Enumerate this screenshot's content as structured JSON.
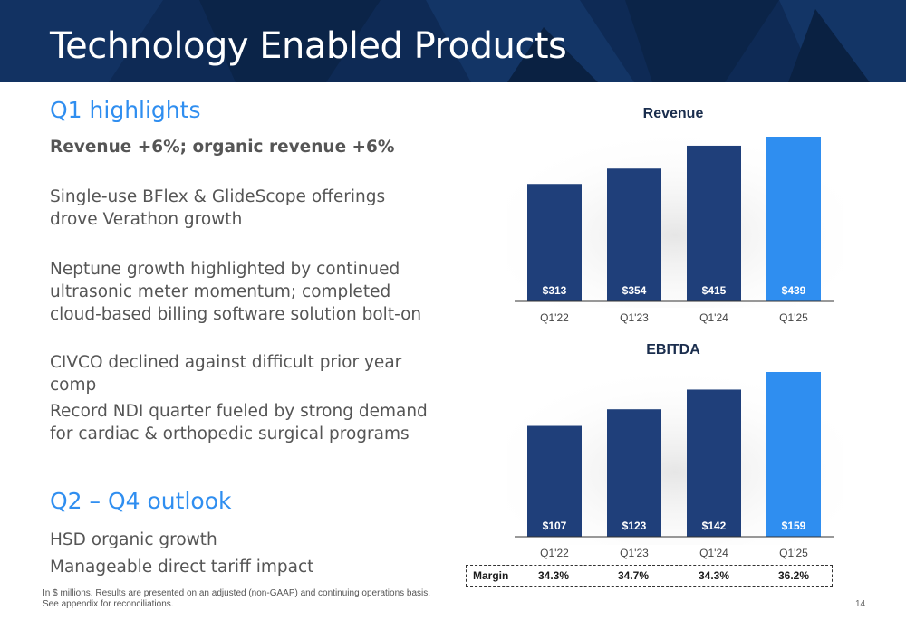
{
  "header": {
    "title": "Technology Enabled Products"
  },
  "highlights": {
    "title": "Q1 highlights",
    "lead": "Revenue +6%; organic revenue +6%",
    "bullets": [
      "Single-use BFlex & GlideScope offerings drove Verathon growth",
      "Neptune growth highlighted by continued ultrasonic meter momentum; completed cloud-based billing software solution bolt-on",
      "CIVCO declined against difficult prior year comp",
      "Record NDI quarter fueled by strong demand for cardiac & orthopedic surgical programs"
    ]
  },
  "outlook": {
    "title": "Q2 – Q4 outlook",
    "items": [
      "HSD organic growth",
      "Manageable direct tariff impact"
    ]
  },
  "footnote": {
    "line1": "In $ millions. Results are presented on an adjusted (non-GAAP) and continuing operations basis.",
    "line2": "See appendix for reconciliations."
  },
  "page_number": "14",
  "colors": {
    "bar_dark": "#1f3f7a",
    "bar_highlight": "#2f8ef0",
    "header_bg": "#0e2a55",
    "accent": "#2f8ef0"
  },
  "margin_row": {
    "label": "Margin",
    "values": [
      "34.3%",
      "34.7%",
      "34.3%",
      "36.2%"
    ]
  },
  "chart_data": [
    {
      "type": "bar",
      "title": "Revenue",
      "categories": [
        "Q1'22",
        "Q1'23",
        "Q1'24",
        "Q1'25"
      ],
      "values": [
        313,
        354,
        415,
        439
      ],
      "value_labels": [
        "$313",
        "$354",
        "$415",
        "$439"
      ],
      "ylim": [
        0,
        439
      ],
      "grid": false
    },
    {
      "type": "bar",
      "title": "EBITDA",
      "categories": [
        "Q1'22",
        "Q1'23",
        "Q1'24",
        "Q1'25"
      ],
      "values": [
        107,
        123,
        142,
        159
      ],
      "value_labels": [
        "$107",
        "$123",
        "$142",
        "$159"
      ],
      "ylim": [
        0,
        159
      ],
      "grid": false
    }
  ]
}
